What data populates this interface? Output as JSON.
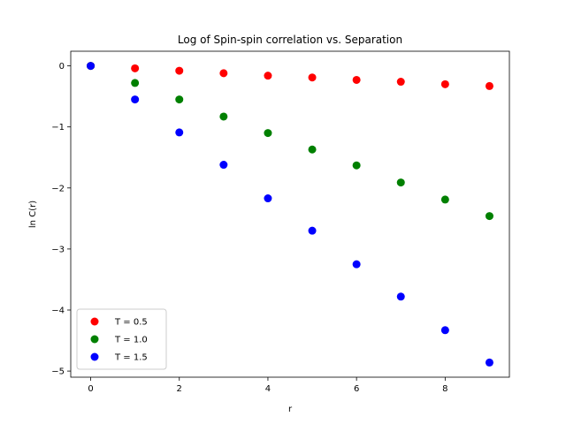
{
  "chart_data": {
    "type": "scatter",
    "title": "Log of Spin-spin correlation vs. Separation",
    "xlabel": "r",
    "ylabel": "ln C(r)",
    "xlim": [
      -0.45,
      9.45
    ],
    "ylim": [
      -5.1,
      0.24
    ],
    "xticks": [
      0,
      2,
      4,
      6,
      8
    ],
    "yticks": [
      0,
      -1,
      -2,
      -3,
      -4,
      -5
    ],
    "grid": false,
    "legend_position": "lower-left",
    "x": [
      0,
      1,
      2,
      3,
      4,
      5,
      6,
      7,
      8,
      9
    ],
    "series": [
      {
        "name": "T = 0.5",
        "color": "#ff0000",
        "values": [
          0.0,
          -0.04,
          -0.08,
          -0.12,
          -0.16,
          -0.19,
          -0.23,
          -0.26,
          -0.3,
          -0.33
        ]
      },
      {
        "name": "T = 1.0",
        "color": "#008000",
        "values": [
          0.0,
          -0.28,
          -0.55,
          -0.83,
          -1.1,
          -1.37,
          -1.63,
          -1.91,
          -2.19,
          -2.46
        ]
      },
      {
        "name": "T = 1.5",
        "color": "#0000ff",
        "values": [
          0.0,
          -0.55,
          -1.09,
          -1.62,
          -2.17,
          -2.7,
          -3.25,
          -3.78,
          -4.33,
          -4.86
        ]
      }
    ]
  }
}
